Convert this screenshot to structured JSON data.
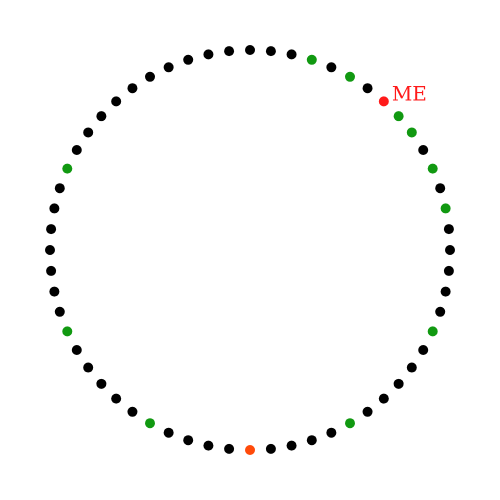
{
  "diagram": {
    "type": "circle-of-dots",
    "dot_count": 60,
    "me_label": "ME",
    "me_index": 7,
    "colors": {
      "default": "#000000",
      "highlight": "#119911",
      "me": "#ff1a1a",
      "bottom": "#ff4a0a"
    },
    "highlight_indices": [
      3,
      5,
      8,
      9,
      11,
      13,
      19,
      25,
      35,
      41,
      49
    ],
    "bottom_index": 30
  }
}
